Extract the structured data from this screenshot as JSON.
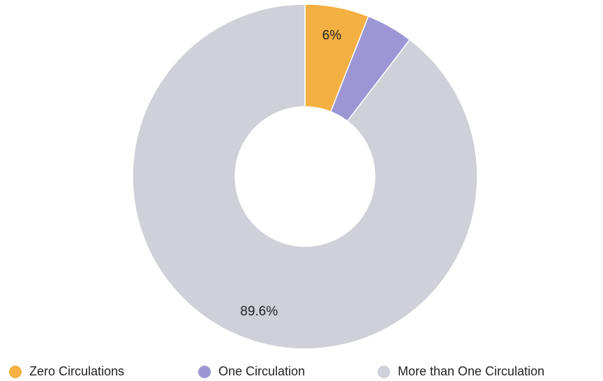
{
  "chart_data": {
    "type": "pie",
    "donut": true,
    "categories": [
      "Zero Circulations",
      "One Circulation",
      "More than One Circulation"
    ],
    "values": [
      6,
      4.4,
      89.6
    ],
    "value_labels": [
      "6%",
      null,
      "89.6%"
    ],
    "colors": [
      "#f4b042",
      "#9c97d4",
      "#cfd0d8"
    ],
    "legend": "bottom"
  }
}
